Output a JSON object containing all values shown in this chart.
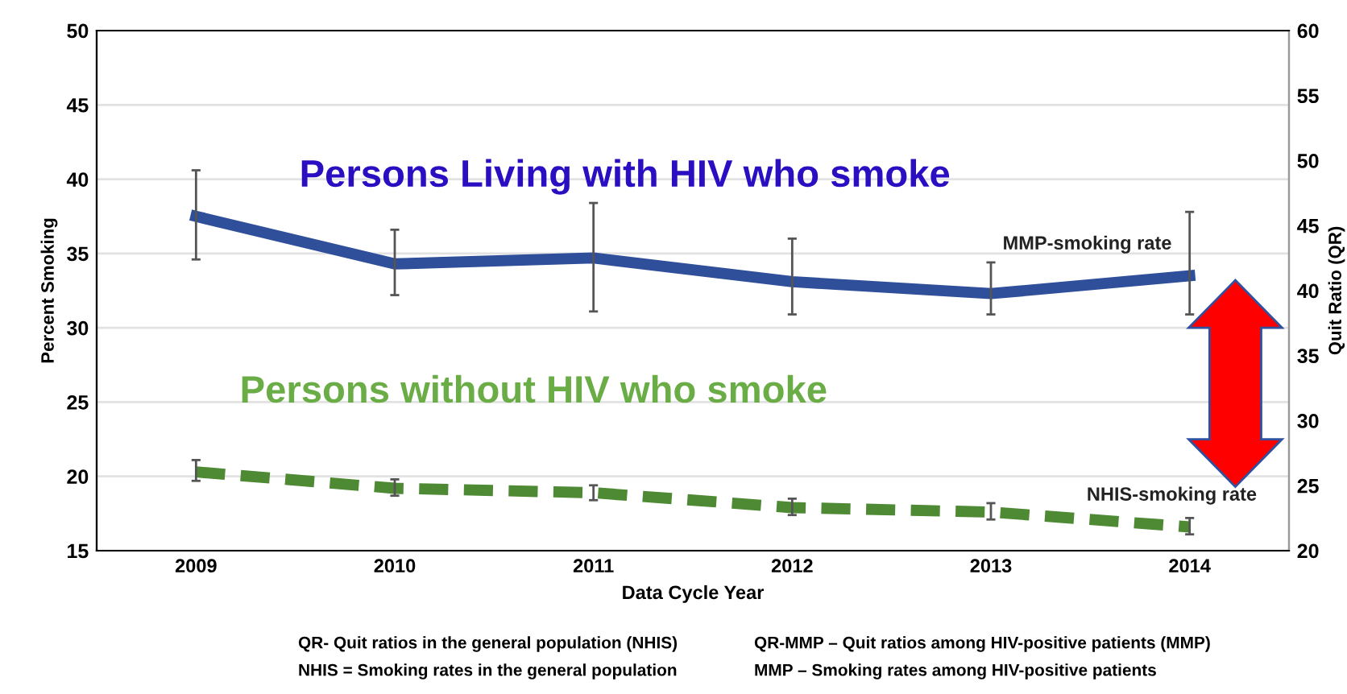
{
  "chart_data": {
    "type": "line",
    "categories": [
      "2009",
      "2010",
      "2011",
      "2012",
      "2013",
      "2014"
    ],
    "series": [
      {
        "name": "MMP-smoking rate",
        "color": "#2f4f9a",
        "line_style": "solid",
        "values": [
          37.5,
          34.3,
          34.7,
          33.1,
          32.3,
          33.5
        ],
        "errors": [
          [
            34.6,
            40.6
          ],
          [
            32.2,
            36.6
          ],
          [
            31.1,
            38.4
          ],
          [
            30.9,
            36.0
          ],
          [
            30.9,
            34.4
          ],
          [
            30.9,
            37.8
          ]
        ]
      },
      {
        "name": "NHIS-smoking rate",
        "color": "#4e8a33",
        "line_style": "dashed",
        "values": [
          20.3,
          19.2,
          18.9,
          17.9,
          17.6,
          16.6
        ],
        "errors": [
          [
            19.7,
            21.1
          ],
          [
            18.7,
            19.8
          ],
          [
            18.4,
            19.4
          ],
          [
            17.4,
            18.5
          ],
          [
            17.1,
            18.2
          ],
          [
            16.1,
            17.2
          ]
        ]
      }
    ],
    "xlabel": "Data Cycle Year",
    "ylabel": "Percent Smoking",
    "y2label": "Quit Ratio (QR)",
    "ylim": [
      15,
      50
    ],
    "yticks": [
      15,
      20,
      25,
      30,
      35,
      40,
      45,
      50
    ],
    "y2lim": [
      20,
      60
    ],
    "y2ticks": [
      20,
      25,
      30,
      35,
      40,
      45,
      50,
      55,
      60
    ],
    "grid": "y",
    "marker": "none",
    "annotations": [
      "Persons Living with HIV who smoke",
      "Persons without HIV who smoke",
      "QR- Quit ratios in the general population (NHIS)",
      "NHIS = Smoking rates in the general population",
      "QR-MMP – Quit ratios among HIV-positive patients (MMP)",
      "MMP – Smoking rates among HIV-positive patients"
    ]
  }
}
